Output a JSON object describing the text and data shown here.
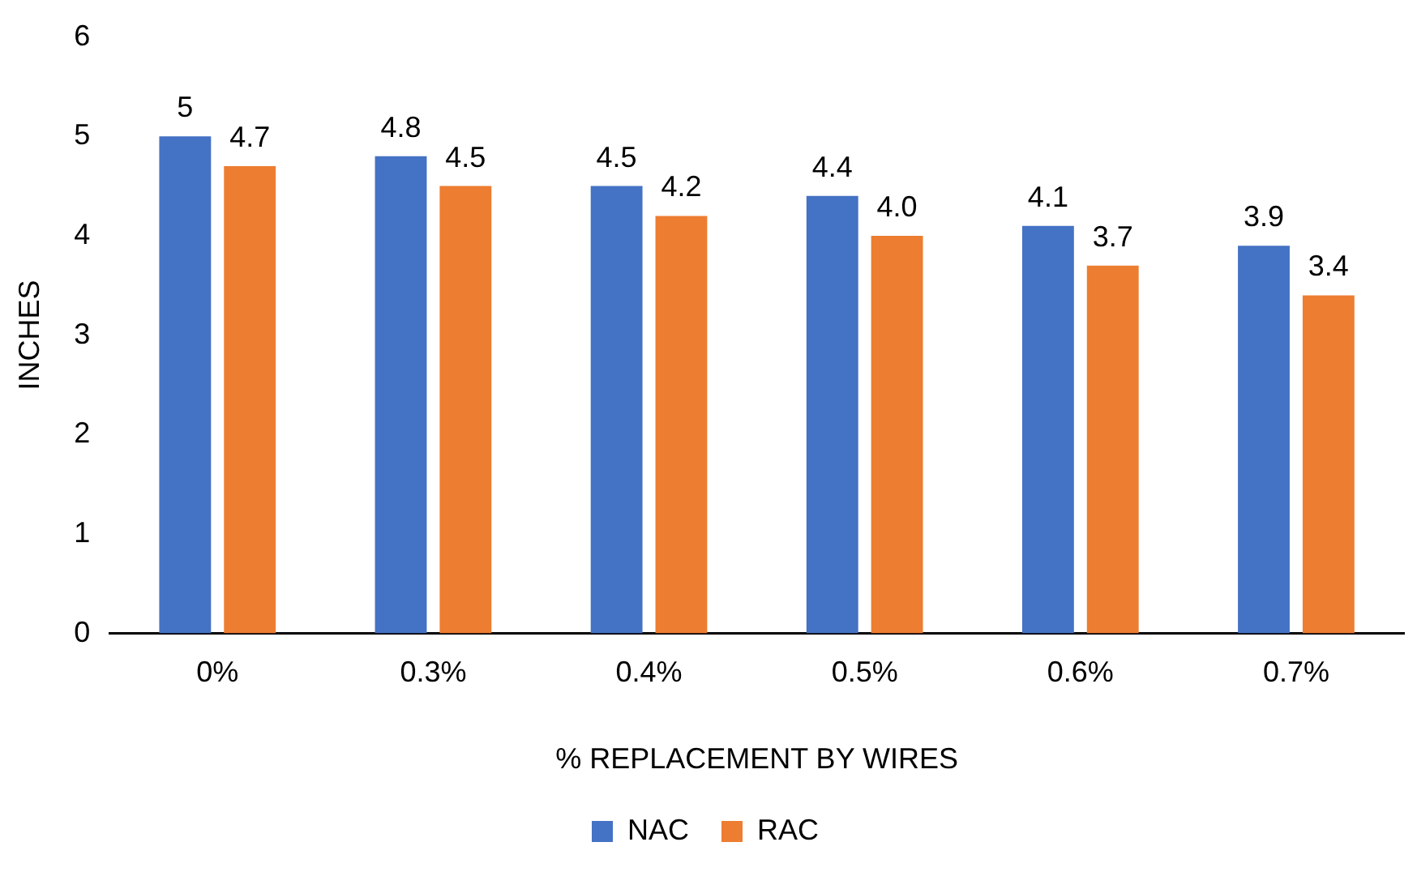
{
  "chart_data": {
    "type": "bar",
    "xlabel": "% REPLACEMENT BY WIRES",
    "ylabel": "INCHES",
    "categories": [
      "0%",
      "0.3%",
      "0.4%",
      "0.5%",
      "0.6%",
      "0.7%"
    ],
    "series": [
      {
        "name": "NAC",
        "color": "#4472c4",
        "values": [
          5,
          4.8,
          4.5,
          4.4,
          4.1,
          3.9
        ],
        "value_labels": [
          "5",
          "4.8",
          "4.5",
          "4.4",
          "4.1",
          "3.9"
        ]
      },
      {
        "name": "RAC",
        "color": "#ed7d31",
        "values": [
          4.7,
          4.5,
          4.2,
          4.0,
          3.7,
          3.4
        ],
        "value_labels": [
          "4.7",
          "4.5",
          "4.2",
          "4.0",
          "3.7",
          "3.4"
        ]
      }
    ],
    "ylim": [
      0,
      6
    ],
    "yticks": [
      0,
      1,
      2,
      3,
      4,
      5,
      6
    ],
    "legend": "bottom"
  }
}
